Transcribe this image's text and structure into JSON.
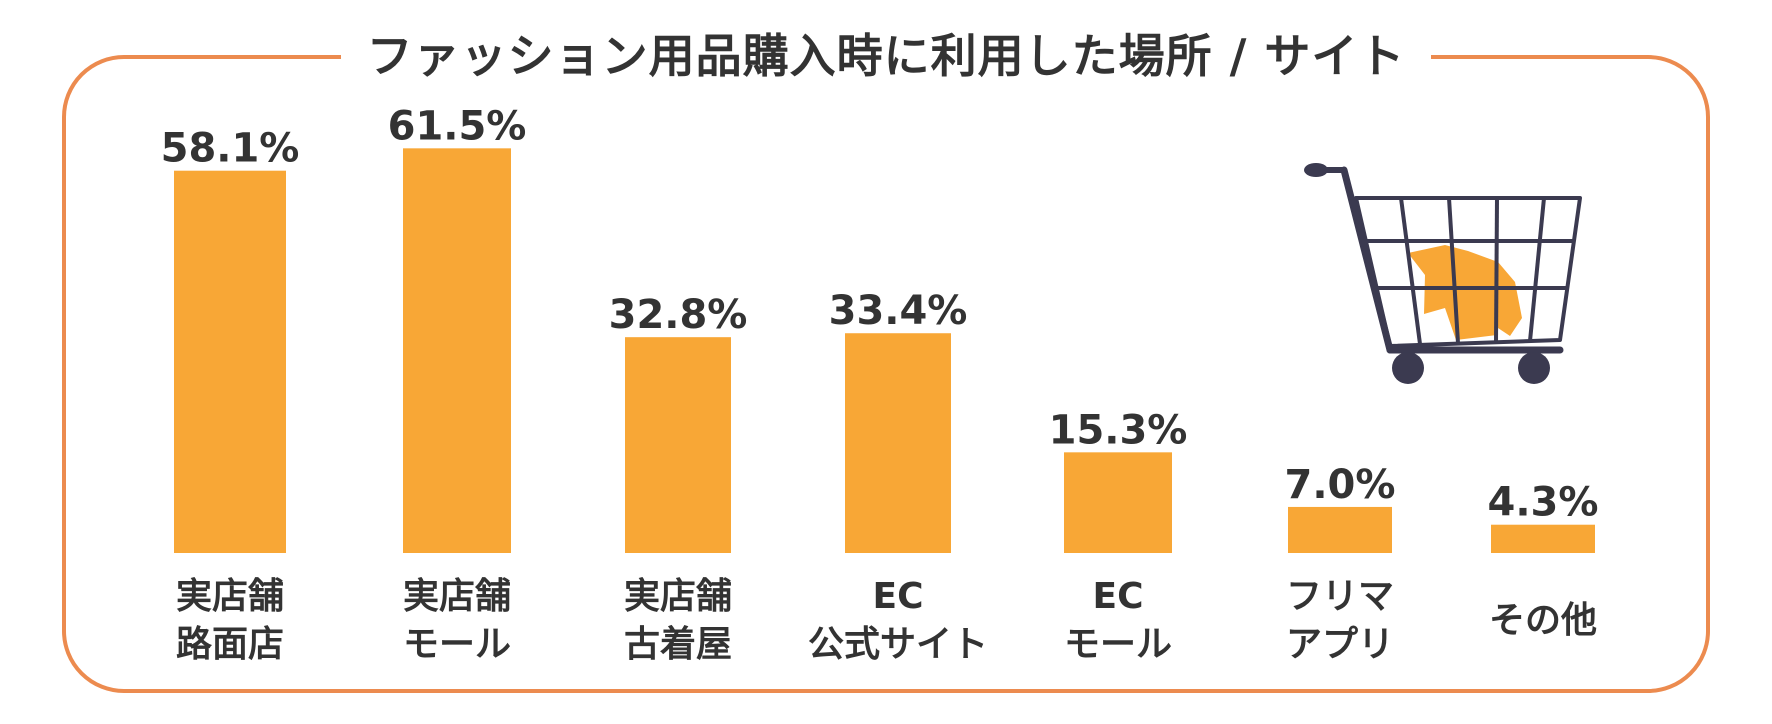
{
  "title": "ファッション用品購入時に利用した場所 / サイト",
  "colors": {
    "bar": "#f8a736",
    "frame": "#ec8b4f",
    "text": "#333333",
    "cart": "#3b3a50"
  },
  "icon": "shopping-cart-with-sweater-icon",
  "chart_data": {
    "type": "bar",
    "title": "ファッション用品購入時に利用した場所 / サイト",
    "unit": "%",
    "ylim": [
      0,
      65
    ],
    "grid": false,
    "legend": "none",
    "categories": [
      [
        "実店舗",
        "路面店"
      ],
      [
        "実店舗",
        "モール"
      ],
      [
        "実店舗",
        "古着屋"
      ],
      [
        "EC",
        "公式サイト"
      ],
      [
        "EC",
        "モール"
      ],
      [
        "フリマ",
        "アプリ"
      ],
      [
        "その他"
      ]
    ],
    "values": [
      58.1,
      61.5,
      32.8,
      33.4,
      15.3,
      7.0,
      4.3
    ],
    "value_labels": [
      "58.1%",
      "61.5%",
      "32.8%",
      "33.4%",
      "15.3%",
      "7.0%",
      "4.3%"
    ]
  }
}
